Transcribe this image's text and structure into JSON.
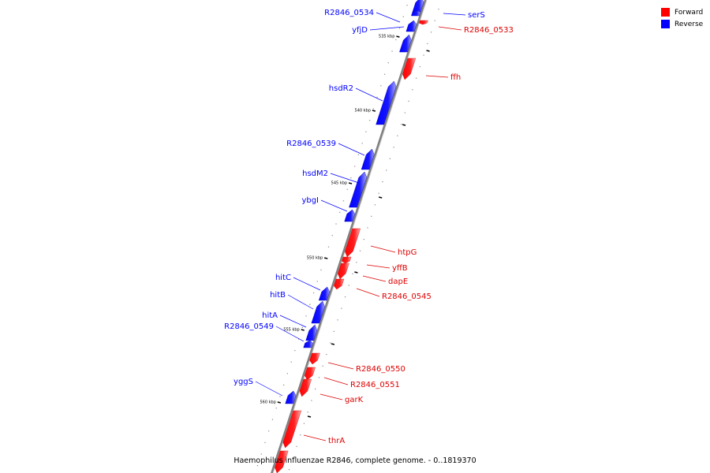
{
  "legend": {
    "forward": {
      "label": "Forward",
      "color": "#ff0000"
    },
    "reverse": {
      "label": "Reverse",
      "color": "#0000ff"
    }
  },
  "caption": "Haemophilus influenzae R2846, complete genome. - 0..1819370",
  "ticks": [
    "535 kbp",
    "540 kbp",
    "545 kbp",
    "550 kbp",
    "555 kbp",
    "560 kbp"
  ],
  "genes": [
    {
      "name": "R2846_0534",
      "strand": "reverse"
    },
    {
      "name": "serS",
      "strand": "reverse"
    },
    {
      "name": "R2846_0533",
      "strand": "forward"
    },
    {
      "name": "yfjD",
      "strand": "reverse"
    },
    {
      "name": "ffh",
      "strand": "forward"
    },
    {
      "name": "hsdR2",
      "strand": "reverse"
    },
    {
      "name": "R2846_0539",
      "strand": "reverse"
    },
    {
      "name": "hsdM2",
      "strand": "reverse"
    },
    {
      "name": "ybgI",
      "strand": "reverse"
    },
    {
      "name": "htpG",
      "strand": "forward"
    },
    {
      "name": "yffB",
      "strand": "forward"
    },
    {
      "name": "dapE",
      "strand": "forward"
    },
    {
      "name": "R2846_0545",
      "strand": "forward"
    },
    {
      "name": "hitC",
      "strand": "reverse"
    },
    {
      "name": "hitB",
      "strand": "reverse"
    },
    {
      "name": "hitA",
      "strand": "reverse"
    },
    {
      "name": "R2846_0549",
      "strand": "reverse"
    },
    {
      "name": "R2846_0550",
      "strand": "forward"
    },
    {
      "name": "R2846_0551",
      "strand": "forward"
    },
    {
      "name": "yggS",
      "strand": "reverse"
    },
    {
      "name": "garK",
      "strand": "forward"
    },
    {
      "name": "thrA",
      "strand": "forward"
    }
  ]
}
